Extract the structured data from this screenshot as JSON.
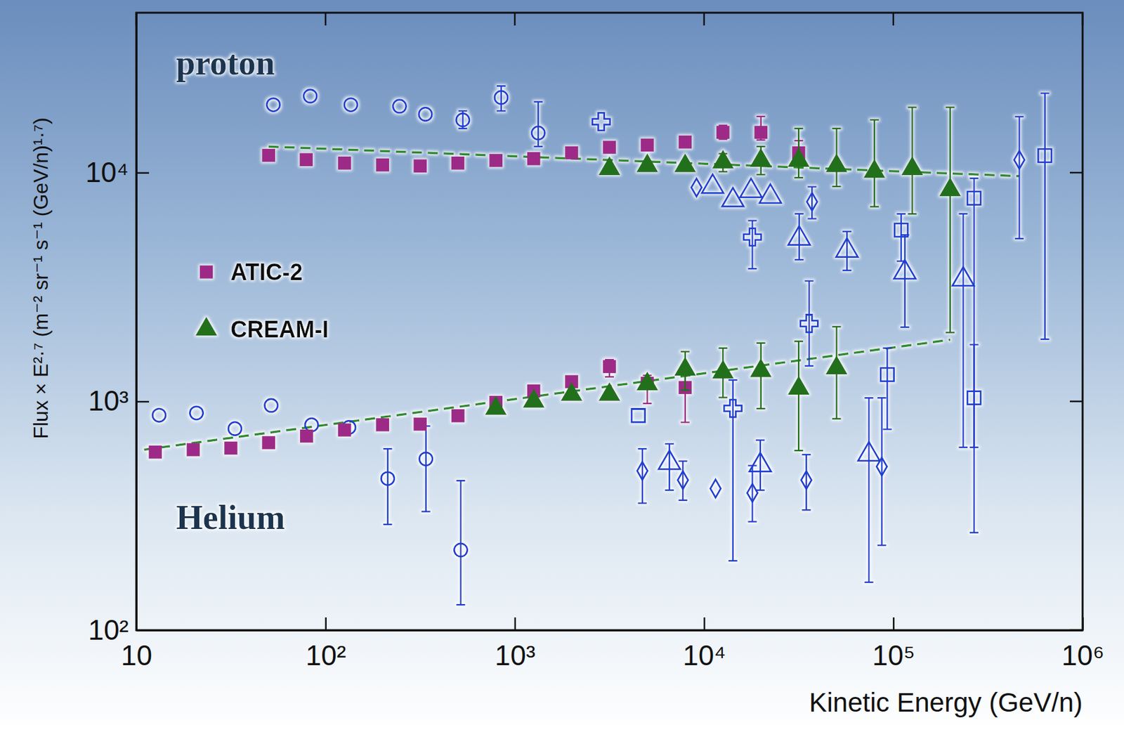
{
  "chart_data": {
    "type": "scatter",
    "log": true,
    "grid": false,
    "legend": "left",
    "xlabel": "Kinetic Energy (GeV/n)",
    "ylabel": "Flux × E²·⁷ (m⁻² sr⁻¹ s⁻¹ (GeV/n)¹·⁷)",
    "annotations": [
      "proton",
      "Helium"
    ],
    "xlim": [
      10,
      1000000
    ],
    "ylim": [
      100,
      50000
    ],
    "xticks": [
      10,
      {
        "value": 100,
        "label": "10²"
      },
      {
        "value": 1000,
        "label": "10³"
      },
      {
        "value": 10000,
        "label": "10⁴"
      },
      {
        "value": 100000,
        "label": "10⁵"
      },
      {
        "value": 1000000,
        "label": "10⁶"
      }
    ],
    "yticks": [
      {
        "value": 100,
        "label": "10²"
      },
      {
        "value": 1000,
        "label": "10³"
      },
      {
        "value": 10000,
        "label": "10⁴"
      }
    ],
    "series": [
      {
        "name": "ATIC-2",
        "color": "#9e2c88",
        "marker": "square",
        "x": [
          50,
          79,
          126,
          200,
          316,
          500,
          794,
          1259,
          1995,
          3162,
          5012,
          7943,
          12589,
          19953,
          31623
        ],
        "values": [
          11900,
          11400,
          11000,
          10800,
          10700,
          11000,
          11300,
          11500,
          12200,
          12900,
          13200,
          13600,
          15000,
          15000,
          12200
        ],
        "lower": [
          null,
          null,
          null,
          null,
          null,
          null,
          null,
          null,
          null,
          null,
          null,
          null,
          14000,
          13900,
          11000
        ],
        "upper": [
          null,
          null,
          null,
          null,
          null,
          null,
          null,
          null,
          null,
          null,
          null,
          null,
          16100,
          17600,
          13800
        ]
      },
      {
        "name": "CREAM-I",
        "color": "#22701a",
        "marker": "triangle",
        "x": [
          3162,
          5012,
          7943,
          12589,
          19953,
          31623,
          50119,
          79433,
          125893,
          199526
        ],
        "values": [
          10400,
          10700,
          10700,
          11100,
          11300,
          11300,
          10700,
          10100,
          10400,
          8400
        ],
        "lower": [
          null,
          null,
          null,
          10100,
          9800,
          9500,
          8700,
          7100,
          6600,
          2000
        ],
        "upper": [
          null,
          null,
          null,
          12100,
          13000,
          15600,
          15600,
          17000,
          19300,
          19300
        ]
      },
      {
        "name": "ATIC-2",
        "color": "#9e2c88",
        "marker": "square",
        "x": [
          12.6,
          20,
          31.6,
          50,
          79.4,
          126,
          200,
          316,
          501,
          794,
          1259,
          1995,
          3162,
          5012,
          7943
        ],
        "values": [
          600,
          615,
          625,
          660,
          705,
          750,
          790,
          795,
          865,
          990,
          1110,
          1220,
          1420,
          1200,
          1150
        ],
        "lower": [
          null,
          null,
          null,
          null,
          null,
          null,
          null,
          null,
          null,
          null,
          null,
          null,
          1280,
          980,
          810
        ],
        "upper": [
          null,
          null,
          null,
          null,
          null,
          null,
          null,
          null,
          null,
          null,
          null,
          null,
          1520,
          1300,
          1380
        ]
      },
      {
        "name": "CREAM-I",
        "color": "#22701a",
        "marker": "triangle",
        "x": [
          794,
          1259,
          1995,
          3162,
          5012,
          7943,
          12589,
          19953,
          31623,
          50119
        ],
        "values": [
          930,
          1000,
          1070,
          1070,
          1190,
          1380,
          1340,
          1360,
          1140,
          1400
        ],
        "lower": [
          null,
          null,
          null,
          null,
          null,
          1120,
          1040,
          930,
          610,
          840
        ],
        "upper": [
          null,
          null,
          null,
          null,
          null,
          1650,
          1710,
          1800,
          1830,
          2120
        ]
      },
      {
        "color": "#1f3fd0",
        "marker": "open-circle",
        "x": [
          53,
          83,
          136,
          246,
          337,
          531,
          847,
          1330,
          13.2,
          20.8,
          33.2,
          51.6,
          84.4,
          133,
          213,
          339,
          518
        ],
        "values": [
          19800,
          21600,
          19800,
          19500,
          18000,
          17000,
          21300,
          14900,
          870,
          890,
          760,
          960,
          790,
          770,
          460,
          560,
          224
        ],
        "lower": [
          null,
          null,
          null,
          null,
          null,
          15600,
          18600,
          13000,
          null,
          null,
          null,
          null,
          null,
          null,
          290,
          330,
          129
        ],
        "upper": [
          null,
          null,
          null,
          null,
          null,
          18600,
          23900,
          20400,
          null,
          null,
          null,
          null,
          null,
          null,
          620,
          780,
          450
        ]
      },
      {
        "color": "#1f3fd0",
        "marker": "open-cross",
        "x": [
          2860,
          18000,
          35900,
          14200
        ],
        "values": [
          16700,
          5230,
          2190,
          932
        ],
        "lower": [
          null,
          3800,
          1430,
          201
        ],
        "upper": [
          null,
          6170,
          3360,
          1240
        ]
      },
      {
        "color": "#1f3fd0",
        "marker": "open-diamond",
        "x": [
          9120,
          37200,
          463000,
          4720,
          7730,
          11500,
          18000,
          34700,
          86900
        ],
        "values": [
          8610,
          7460,
          11370,
          497,
          453,
          416,
          398,
          453,
          519
        ],
        "lower": [
          null,
          6290,
          5150,
          359,
          370,
          null,
          298,
          335,
          235
        ],
        "upper": [
          null,
          8670,
          17560,
          620,
          548,
          null,
          524,
          585,
          1036
        ]
      },
      {
        "color": "#1f3fd0",
        "marker": "open-triangle",
        "x": [
          11100,
          14200,
          17700,
          22400,
          31800,
          56900,
          115000,
          234000,
          6560,
          19800,
          74300
        ],
        "values": [
          8670,
          7570,
          8310,
          7850,
          5150,
          4560,
          3660,
          3410,
          538,
          526,
          586
        ],
        "lower": [
          null,
          null,
          null,
          null,
          4160,
          3740,
          2110,
          630,
          409,
          409,
          162
        ],
        "upper": [
          null,
          null,
          null,
          null,
          6610,
          5530,
          5340,
          6610,
          652,
          677,
          1035
        ]
      },
      {
        "color": "#1f3fd0",
        "marker": "open-square",
        "x": [
          110000,
          267000,
          632000,
          4490,
          92900,
          267000
        ],
        "values": [
          5610,
          7740,
          11870,
          867,
          1310,
          1036
        ],
        "lower": [
          4100,
          630,
          1870,
          null,
          755,
          267
        ],
        "upper": [
          6600,
          9440,
          22230,
          null,
          1710,
          1770
        ]
      },
      {
        "type": "line",
        "line_style": "dashed",
        "color": "#2e8b2e",
        "x": [
          50,
          463000
        ],
        "values": [
          13000,
          9650
        ]
      },
      {
        "type": "line",
        "line_style": "dashed",
        "color": "#2e8b2e",
        "x": [
          11,
          200000
        ],
        "values": [
          615,
          1860
        ]
      }
    ]
  }
}
